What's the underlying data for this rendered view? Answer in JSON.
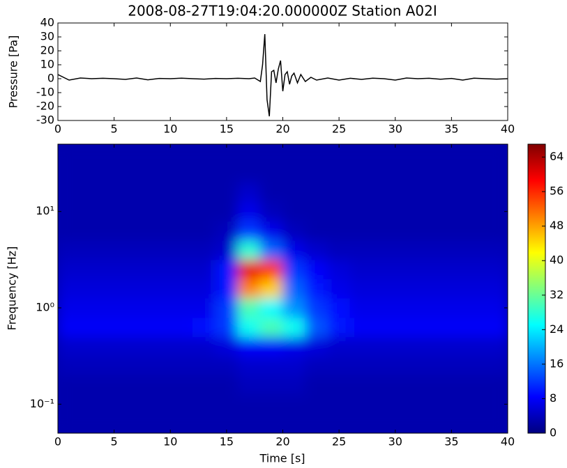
{
  "chart_data": [
    {
      "type": "line",
      "title": "2008-08-27T19:04:20.000000Z Station A02I",
      "ylabel": "Pressure [Pa]",
      "color": "#000000",
      "x": [
        0,
        1,
        2,
        3,
        4,
        5,
        6,
        7,
        8,
        9,
        10,
        11,
        12,
        13,
        14,
        15,
        16,
        17,
        17.5,
        18,
        18.2,
        18.4,
        18.6,
        18.8,
        19,
        19.2,
        19.4,
        19.6,
        19.8,
        20,
        20.2,
        20.4,
        20.6,
        20.8,
        21,
        21.3,
        21.6,
        22,
        22.5,
        23,
        24,
        25,
        26,
        27,
        28,
        29,
        30,
        31,
        32,
        33,
        34,
        35,
        36,
        37,
        38,
        39,
        40
      ],
      "values": [
        3,
        -1,
        0.5,
        0,
        0.3,
        0,
        -0.5,
        0.5,
        -0.8,
        0.2,
        0,
        0.4,
        0,
        -0.3,
        0.2,
        0,
        0.3,
        0,
        0.5,
        -2,
        10,
        32,
        -15,
        -27,
        5,
        6,
        -3,
        7,
        13,
        -9,
        3,
        5,
        -4,
        2,
        4,
        -3,
        3,
        -2,
        1,
        -1,
        0.5,
        -1,
        0.3,
        -0.5,
        0.4,
        0,
        -1,
        0.5,
        0,
        0.3,
        -0.4,
        0.2,
        -1,
        0.4,
        0,
        -0.3,
        0
      ],
      "xlim": [
        0,
        40
      ],
      "xticks": [
        0,
        5,
        10,
        15,
        20,
        25,
        30,
        35,
        40
      ],
      "ylim": [
        -30,
        40
      ],
      "yticks": [
        -30,
        -20,
        -10,
        0,
        10,
        20,
        30,
        40
      ]
    },
    {
      "type": "heatmap",
      "xlabel": "Time [s]",
      "ylabel": "Frequency [Hz]",
      "log_y": true,
      "colormap": "jet",
      "x": [
        1,
        3,
        5,
        7,
        9,
        11,
        13,
        15,
        17,
        19,
        21,
        23,
        25,
        27,
        29,
        31,
        33,
        35,
        37,
        39
      ],
      "y": [
        0.063,
        0.1,
        0.16,
        0.25,
        0.4,
        0.63,
        1.0,
        1.6,
        2.5,
        4.0,
        6.3,
        10,
        16,
        25,
        40
      ],
      "z": [
        [
          3,
          3,
          3,
          3,
          3,
          3,
          3,
          3,
          3,
          3,
          3,
          3,
          3,
          3,
          3,
          3,
          3,
          3,
          3,
          3
        ],
        [
          3,
          3,
          3,
          3,
          3,
          3,
          3,
          3,
          3,
          3,
          3,
          3,
          3,
          3,
          3,
          3,
          3,
          3,
          3,
          3
        ],
        [
          3,
          3,
          3,
          3,
          3,
          3,
          3,
          3,
          4,
          4,
          4,
          3,
          3,
          3,
          3,
          3,
          3,
          3,
          3,
          3
        ],
        [
          4,
          4,
          4,
          4,
          4,
          4,
          4,
          4,
          5,
          5,
          5,
          4,
          4,
          4,
          4,
          4,
          4,
          4,
          4,
          4
        ],
        [
          5,
          5,
          5,
          5,
          5,
          5,
          5,
          6,
          8,
          8,
          7,
          6,
          5,
          5,
          5,
          5,
          5,
          5,
          5,
          5
        ],
        [
          8,
          8,
          8,
          8,
          8,
          8,
          9,
          12,
          26,
          30,
          26,
          14,
          10,
          8,
          8,
          8,
          8,
          8,
          8,
          8
        ],
        [
          7,
          7,
          7,
          7,
          7,
          7,
          7,
          12,
          30,
          25,
          18,
          12,
          9,
          7,
          7,
          7,
          7,
          7,
          7,
          7
        ],
        [
          6,
          6,
          6,
          6,
          6,
          6,
          6,
          10,
          50,
          45,
          15,
          10,
          7,
          6,
          6,
          6,
          6,
          6,
          6,
          6
        ],
        [
          5,
          5,
          5,
          5,
          5,
          5,
          5,
          10,
          60,
          55,
          12,
          8,
          6,
          5,
          5,
          5,
          5,
          5,
          5,
          5
        ],
        [
          4,
          4,
          4,
          4,
          4,
          4,
          4,
          5,
          28,
          15,
          7,
          5,
          4,
          4,
          4,
          4,
          4,
          4,
          4,
          4
        ],
        [
          3,
          3,
          3,
          3,
          3,
          3,
          3,
          4,
          12,
          7,
          4,
          3,
          3,
          3,
          3,
          3,
          3,
          3,
          3,
          3
        ],
        [
          3,
          3,
          3,
          3,
          3,
          3,
          3,
          3,
          7,
          4,
          3,
          3,
          3,
          3,
          3,
          3,
          3,
          3,
          3,
          3
        ],
        [
          3,
          3,
          3,
          3,
          3,
          3,
          3,
          3,
          5,
          3,
          3,
          3,
          3,
          3,
          3,
          3,
          3,
          3,
          3,
          3
        ],
        [
          3,
          3,
          3,
          3,
          3,
          3,
          3,
          3,
          3,
          3,
          3,
          3,
          3,
          3,
          3,
          3,
          3,
          3,
          3,
          3
        ],
        [
          3,
          3,
          3,
          3,
          3,
          3,
          3,
          3,
          3,
          3,
          3,
          3,
          3,
          3,
          3,
          3,
          3,
          3,
          3,
          3
        ]
      ],
      "xlim": [
        0,
        40
      ],
      "xticks": [
        0,
        5,
        10,
        15,
        20,
        25,
        30,
        35,
        40
      ],
      "ylim": [
        0.05,
        50
      ],
      "yticks": [
        {
          "value": 0.1,
          "label": "10⁻¹"
        },
        {
          "value": 1,
          "label": "10⁰"
        },
        {
          "value": 10,
          "label": "10¹"
        }
      ],
      "clim": [
        0,
        67
      ],
      "cticks": [
        0,
        8,
        16,
        24,
        32,
        40,
        48,
        56,
        64
      ]
    }
  ]
}
